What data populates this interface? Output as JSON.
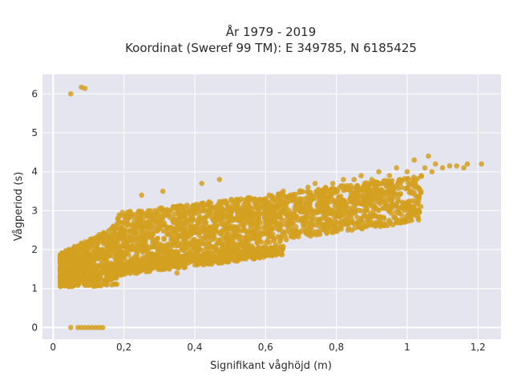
{
  "chart_data": {
    "type": "scatter",
    "title": "År 1979 - 2019",
    "subtitle": "Koordinat (Sweref 99 TM): E 349785, N 6185425",
    "xlabel": "Signifikant våghöjd (m)",
    "ylabel": "Vågperiod (s)",
    "xlim": [
      -0.03,
      1.265
    ],
    "ylim": [
      -0.3,
      6.5
    ],
    "x_ticks": [
      0,
      0.2,
      0.4,
      0.6,
      0.8,
      1.0,
      1.2
    ],
    "x_tick_labels": [
      "0",
      "0,2",
      "0,4",
      "0,6",
      "0,8",
      "1",
      "1,2"
    ],
    "y_ticks": [
      0,
      1,
      2,
      3,
      4,
      5,
      6
    ],
    "y_tick_labels": [
      "0",
      "1",
      "2",
      "3",
      "4",
      "5",
      "6"
    ],
    "grid": true,
    "legend": "none",
    "colors": {
      "points": "#D4A020",
      "plot_bg": "#E5E5EF",
      "grid": "#ffffff"
    },
    "series": [
      {
        "points": [
          [
            0.05,
            6.0
          ],
          [
            0.08,
            6.17
          ],
          [
            0.09,
            6.14
          ],
          [
            0.05,
            0.0
          ],
          [
            0.07,
            0.0
          ],
          [
            0.08,
            0.0
          ],
          [
            0.09,
            0.0
          ],
          [
            0.1,
            0.0
          ],
          [
            0.11,
            0.0
          ],
          [
            0.12,
            0.0
          ],
          [
            0.13,
            0.0
          ],
          [
            0.14,
            0.0
          ],
          [
            0.02,
            1.3
          ],
          [
            0.02,
            1.5
          ],
          [
            0.03,
            1.4
          ],
          [
            0.04,
            1.6
          ],
          [
            0.05,
            1.2
          ],
          [
            0.06,
            1.5
          ],
          [
            0.07,
            1.8
          ],
          [
            0.08,
            1.4
          ],
          [
            0.09,
            2.0
          ],
          [
            0.1,
            1.7
          ],
          [
            0.1,
            1.1
          ],
          [
            0.12,
            1.1
          ],
          [
            0.14,
            1.2
          ],
          [
            0.12,
            1.5
          ],
          [
            0.13,
            2.0
          ],
          [
            0.14,
            2.4
          ],
          [
            0.15,
            1.8
          ],
          [
            0.16,
            2.2
          ],
          [
            0.17,
            2.6
          ],
          [
            0.18,
            2.3
          ],
          [
            0.18,
            1.5
          ],
          [
            0.2,
            1.6
          ],
          [
            0.2,
            2.4
          ],
          [
            0.21,
            2.7
          ],
          [
            0.22,
            2.0
          ],
          [
            0.23,
            2.5
          ],
          [
            0.24,
            2.8
          ],
          [
            0.25,
            2.3
          ],
          [
            0.25,
            1.7
          ],
          [
            0.26,
            2.6
          ],
          [
            0.27,
            2.9
          ],
          [
            0.28,
            2.4
          ],
          [
            0.28,
            1.8
          ],
          [
            0.3,
            2.7
          ],
          [
            0.31,
            2.9
          ],
          [
            0.32,
            2.5
          ],
          [
            0.33,
            3.0
          ],
          [
            0.34,
            2.7
          ],
          [
            0.35,
            1.9
          ],
          [
            0.36,
            2.8
          ],
          [
            0.37,
            3.1
          ],
          [
            0.38,
            2.6
          ],
          [
            0.39,
            2.9
          ],
          [
            0.4,
            3.1
          ],
          [
            0.4,
            2.0
          ],
          [
            0.41,
            2.7
          ],
          [
            0.42,
            3.0
          ],
          [
            0.44,
            3.2
          ],
          [
            0.45,
            2.8
          ],
          [
            0.46,
            3.1
          ],
          [
            0.46,
            2.0
          ],
          [
            0.48,
            3.0
          ],
          [
            0.49,
            3.2
          ],
          [
            0.5,
            2.9
          ],
          [
            0.5,
            2.0
          ],
          [
            0.52,
            3.1
          ],
          [
            0.53,
            3.3
          ],
          [
            0.54,
            2.9
          ],
          [
            0.55,
            3.2
          ],
          [
            0.56,
            2.1
          ],
          [
            0.57,
            3.3
          ],
          [
            0.58,
            3.0
          ],
          [
            0.6,
            3.2
          ],
          [
            0.61,
            3.4
          ],
          [
            0.62,
            3.1
          ],
          [
            0.62,
            2.4
          ],
          [
            0.64,
            3.3
          ],
          [
            0.65,
            3.5
          ],
          [
            0.66,
            3.2
          ],
          [
            0.67,
            3.4
          ],
          [
            0.68,
            3.3
          ],
          [
            0.7,
            3.5
          ],
          [
            0.71,
            3.3
          ],
          [
            0.72,
            3.6
          ],
          [
            0.73,
            3.4
          ],
          [
            0.74,
            3.7
          ],
          [
            0.75,
            3.5
          ],
          [
            0.76,
            3.3
          ],
          [
            0.77,
            3.6
          ],
          [
            0.78,
            3.5
          ],
          [
            0.79,
            3.7
          ],
          [
            0.8,
            3.5
          ],
          [
            0.81,
            3.6
          ],
          [
            0.82,
            3.8
          ],
          [
            0.83,
            3.6
          ],
          [
            0.84,
            3.5
          ],
          [
            0.85,
            3.8
          ],
          [
            0.86,
            3.6
          ],
          [
            0.87,
            3.9
          ],
          [
            0.88,
            3.7
          ],
          [
            0.89,
            3.6
          ],
          [
            0.9,
            3.8
          ],
          [
            0.92,
            4.0
          ],
          [
            0.93,
            3.7
          ],
          [
            0.95,
            3.9
          ],
          [
            0.97,
            4.1
          ],
          [
            0.98,
            3.8
          ],
          [
            1.0,
            4.0
          ],
          [
            1.02,
            4.3
          ],
          [
            1.04,
            3.9
          ],
          [
            1.05,
            4.1
          ],
          [
            1.06,
            4.4
          ],
          [
            1.07,
            4.0
          ],
          [
            1.08,
            4.2
          ],
          [
            1.1,
            4.1
          ],
          [
            1.12,
            4.15
          ],
          [
            1.14,
            4.15
          ],
          [
            1.16,
            4.1
          ],
          [
            1.17,
            4.2
          ],
          [
            1.21,
            4.2
          ],
          [
            0.23,
            1.5
          ],
          [
            0.29,
            1.7
          ],
          [
            0.33,
            1.8
          ],
          [
            0.38,
            1.9
          ],
          [
            0.43,
            2.0
          ],
          [
            0.49,
            2.1
          ],
          [
            0.55,
            2.1
          ],
          [
            0.61,
            2.4
          ],
          [
            0.64,
            2.2
          ],
          [
            0.25,
            3.4
          ],
          [
            0.31,
            3.5
          ],
          [
            0.42,
            3.7
          ],
          [
            0.47,
            3.8
          ],
          [
            0.35,
            1.4
          ],
          [
            0.6,
            2.0
          ]
        ]
      }
    ]
  }
}
